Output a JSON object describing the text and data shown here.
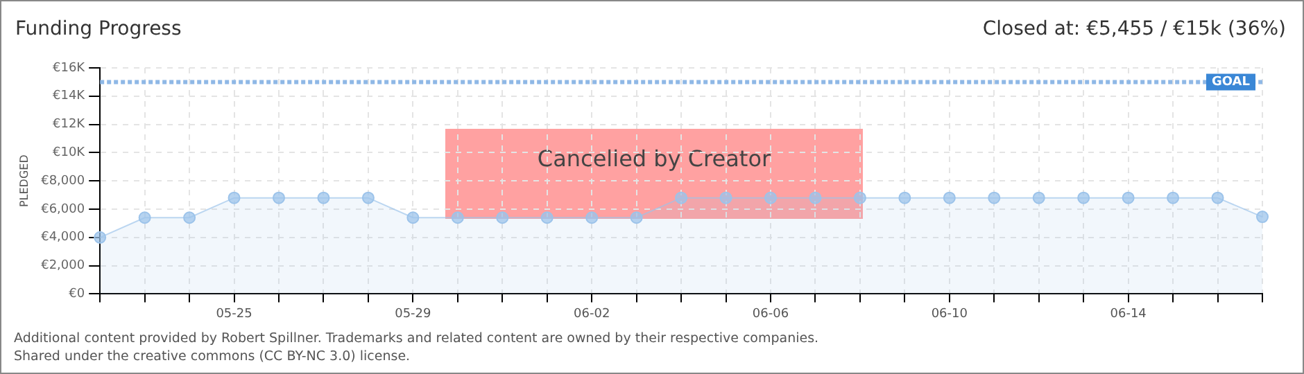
{
  "chart_data": {
    "type": "area",
    "title": "Funding Progress",
    "subtitle": "Closed at: €5,455 / €15k (36%)",
    "ylabel": "PLEDGED",
    "categories": [
      null,
      null,
      null,
      "05-25",
      null,
      null,
      null,
      "05-29",
      null,
      null,
      null,
      "06-02",
      null,
      null,
      null,
      "06-06",
      null,
      null,
      null,
      "06-10",
      null,
      null,
      null,
      "06-14",
      null,
      null,
      null
    ],
    "series": [
      {
        "color": "#9cc3ea",
        "values": [
          4000,
          5400,
          5400,
          6800,
          6800,
          6800,
          6800,
          5400,
          5400,
          5400,
          5400,
          5400,
          5400,
          6800,
          6800,
          6800,
          6800,
          6800,
          6800,
          6800,
          6800,
          6800,
          6800,
          6800,
          6800,
          6800,
          5455
        ]
      }
    ],
    "ylim": [
      0,
      16000
    ],
    "yticks": [
      {
        "value": 0,
        "label": "€0"
      },
      {
        "value": 2000,
        "label": "€2,000"
      },
      {
        "value": 4000,
        "label": "€4,000"
      },
      {
        "value": 6000,
        "label": "€6,000"
      },
      {
        "value": 8000,
        "label": "€8,000"
      },
      {
        "value": 10000,
        "label": "€10K"
      },
      {
        "value": 12000,
        "label": "€12K"
      },
      {
        "value": 14000,
        "label": "€14K"
      },
      {
        "value": 16000,
        "label": "€16K"
      }
    ],
    "grid": true,
    "marker": "circle",
    "legend": false,
    "ref_lines": [
      {
        "axis": "y",
        "value": 15000,
        "label": "GOAL",
        "color": "#8fb8e6",
        "line_style": "dotted"
      }
    ],
    "annotations": [
      "Cancelled by Creator",
      "Additional content provided by Robert Spillner. Trademarks and related content are owned by their respective companies.",
      "Shared under the creative commons (CC BY-NC 3.0) license."
    ]
  }
}
